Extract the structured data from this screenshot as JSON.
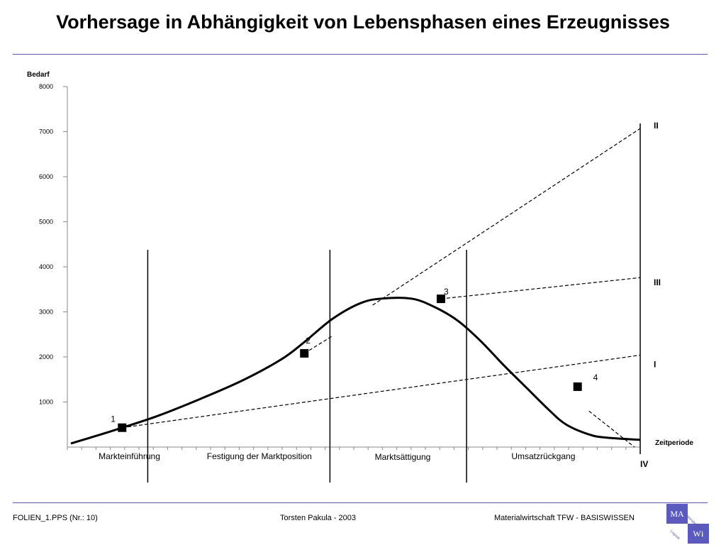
{
  "slide": {
    "title": "Vorhersage in Abhängigkeit von Lebensphasen eines Erzeugnisses",
    "rule_color": "#5b5bbf"
  },
  "footer": {
    "left": "FOLIEN_1.PPS (Nr.: 10)",
    "center": "Torsten Pakula - 2003",
    "right": "Materialwirtschaft TFW - BASISWISSEN"
  },
  "logo": {
    "ma": "MA",
    "wi": "WI",
    "small_a": "Materialwirtschaft",
    "small_b": "Logistik",
    "color": "#5b5bbf"
  },
  "chart_data": {
    "type": "line",
    "ylabel": "Bedarf",
    "xlabel": "Zeitperiode",
    "ylim": [
      0,
      8000
    ],
    "xlim": [
      0,
      100
    ],
    "yticks": [
      1000,
      2000,
      3000,
      4000,
      5000,
      6000,
      7000,
      8000
    ],
    "grid": false,
    "curve": {
      "x": [
        0,
        5,
        9,
        15,
        22,
        30,
        37,
        41,
        46,
        51,
        55,
        60,
        64,
        68,
        72,
        76,
        80,
        84,
        87,
        91,
        94,
        100
      ],
      "y": [
        80,
        270,
        430,
        680,
        1030,
        1470,
        1950,
        2330,
        2850,
        3200,
        3300,
        3290,
        3100,
        2800,
        2350,
        1820,
        1320,
        820,
        500,
        280,
        210,
        160
      ]
    },
    "points": [
      {
        "label": "1",
        "x": 9,
        "y": 430
      },
      {
        "label": "2",
        "x": 41,
        "y": 2080
      },
      {
        "label": "3",
        "x": 65,
        "y": 3290
      },
      {
        "label": "4",
        "x": 89,
        "y": 1340
      }
    ],
    "trends": [
      {
        "label": "I",
        "x": [
          9,
          100
        ],
        "y": [
          430,
          2040
        ]
      },
      {
        "label": "II",
        "x": [
          53,
          100
        ],
        "y": [
          3150,
          7070
        ]
      },
      {
        "label": "III",
        "x": [
          65,
          100
        ],
        "y": [
          3290,
          3760
        ]
      },
      {
        "label": "IV",
        "x": [
          91,
          99
        ],
        "y": [
          800,
          0
        ]
      },
      {
        "label": "",
        "x": [
          41,
          46
        ],
        "y": [
          2080,
          2470
        ]
      }
    ],
    "phase_dividers": [
      13.5,
      45.5,
      69.5,
      100
    ],
    "phases": [
      {
        "label": "Markteinführung",
        "x": 5.5
      },
      {
        "label": "Festigung der Marktposition",
        "x": 24.5
      },
      {
        "label": "Marktsättigung",
        "x": 54
      },
      {
        "label": "Umsatzrückgang",
        "x": 78
      }
    ]
  }
}
